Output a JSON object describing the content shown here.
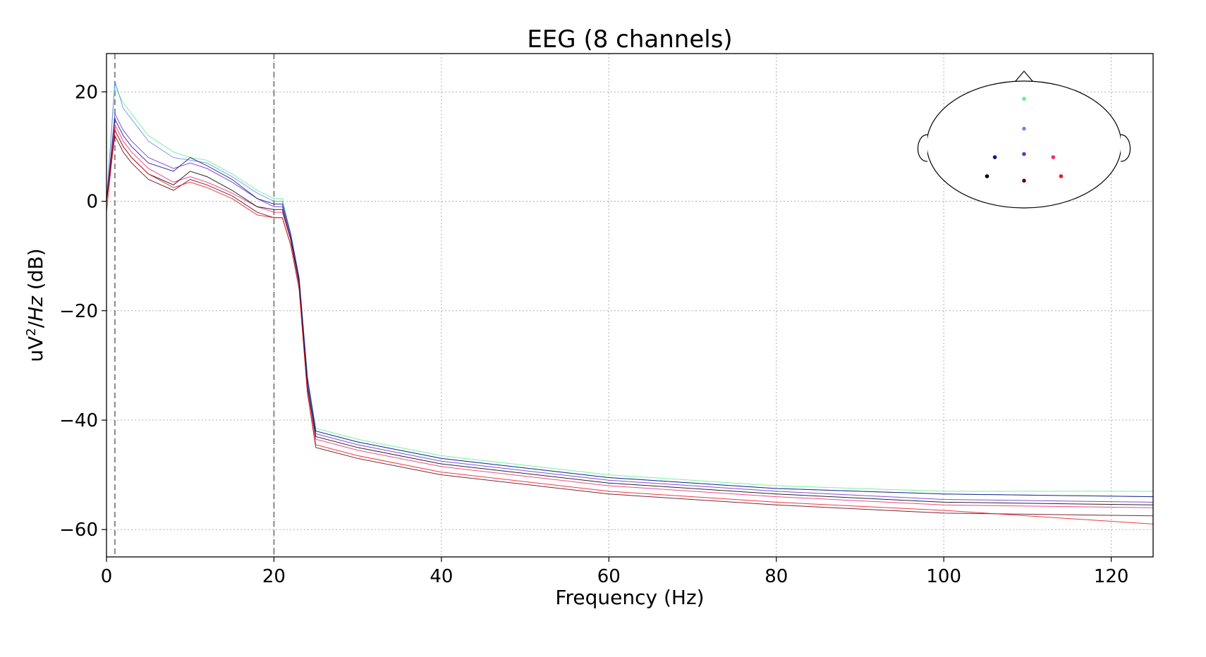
{
  "chart_data": {
    "type": "line",
    "title": "EEG (8 channels)",
    "xlabel": "Frequency (Hz)",
    "ylabel": {
      "base": "uV",
      "sup": "2",
      "slash": "/",
      "italic": "Hz",
      "unit": " (dB)"
    },
    "xlim": [
      0,
      125
    ],
    "ylim": [
      -65,
      27
    ],
    "xticks": [
      0,
      20,
      40,
      60,
      80,
      100,
      120
    ],
    "yticks": [
      20,
      0,
      -20,
      -40,
      -60
    ],
    "grid": true,
    "vlines": [
      1,
      20
    ],
    "sensor_inset": {
      "position": "top-right",
      "sensors": [
        {
          "x": 0.0,
          "y": 0.72,
          "color": "#5ef090"
        },
        {
          "x": 0.0,
          "y": 0.25,
          "color": "#7088f0"
        },
        {
          "x": 0.0,
          "y": -0.15,
          "color": "#6a2fd0"
        },
        {
          "x": -0.3,
          "y": -0.2,
          "color": "#0a1a80"
        },
        {
          "x": 0.3,
          "y": -0.2,
          "color": "#f0287a"
        },
        {
          "x": -0.38,
          "y": -0.5,
          "color": "#000000"
        },
        {
          "x": 0.0,
          "y": -0.57,
          "color": "#600018"
        },
        {
          "x": 0.38,
          "y": -0.5,
          "color": "#f01818"
        }
      ]
    },
    "series": [
      {
        "color": "#5ef090",
        "points": [
          [
            0,
            0
          ],
          [
            1,
            21
          ],
          [
            2,
            18
          ],
          [
            3,
            16
          ],
          [
            5,
            12
          ],
          [
            8,
            9
          ],
          [
            10,
            8
          ],
          [
            12,
            7.5
          ],
          [
            15,
            5
          ],
          [
            18,
            2
          ],
          [
            20,
            0.5
          ],
          [
            21,
            0.5
          ],
          [
            22,
            -6
          ],
          [
            23,
            -14
          ],
          [
            24,
            -32
          ],
          [
            25,
            -41.5
          ],
          [
            30,
            -43.5
          ],
          [
            40,
            -46.5
          ],
          [
            60,
            -50
          ],
          [
            80,
            -52
          ],
          [
            100,
            -53
          ],
          [
            125,
            -53
          ]
        ]
      },
      {
        "color": "#7088f0",
        "points": [
          [
            0,
            0
          ],
          [
            1,
            22
          ],
          [
            2,
            17
          ],
          [
            3,
            15
          ],
          [
            5,
            11
          ],
          [
            8,
            8
          ],
          [
            10,
            7.5
          ],
          [
            12,
            7
          ],
          [
            15,
            4.5
          ],
          [
            18,
            1.5
          ],
          [
            20,
            0
          ],
          [
            21,
            0
          ],
          [
            22,
            -6
          ],
          [
            23,
            -14
          ],
          [
            24,
            -32
          ],
          [
            25,
            -42
          ],
          [
            30,
            -44
          ],
          [
            40,
            -47
          ],
          [
            60,
            -50.5
          ],
          [
            80,
            -52.5
          ],
          [
            100,
            -53.5
          ],
          [
            125,
            -54
          ]
        ]
      },
      {
        "color": "#6a2fd0",
        "points": [
          [
            0,
            0
          ],
          [
            1,
            16
          ],
          [
            2,
            13
          ],
          [
            3,
            11
          ],
          [
            5,
            8
          ],
          [
            8,
            6
          ],
          [
            10,
            7
          ],
          [
            12,
            6
          ],
          [
            15,
            3.5
          ],
          [
            18,
            0.5
          ],
          [
            20,
            -1
          ],
          [
            21,
            -1
          ],
          [
            22,
            -6.5
          ],
          [
            23,
            -14.5
          ],
          [
            24,
            -33
          ],
          [
            25,
            -42.5
          ],
          [
            30,
            -44.5
          ],
          [
            40,
            -47.5
          ],
          [
            60,
            -51
          ],
          [
            80,
            -53
          ],
          [
            100,
            -54.5
          ],
          [
            125,
            -55
          ]
        ]
      },
      {
        "color": "#0a1a80",
        "points": [
          [
            0,
            0
          ],
          [
            1,
            15
          ],
          [
            2,
            12
          ],
          [
            3,
            10
          ],
          [
            5,
            7
          ],
          [
            8,
            5.5
          ],
          [
            10,
            8
          ],
          [
            12,
            6.5
          ],
          [
            15,
            4
          ],
          [
            18,
            0.5
          ],
          [
            20,
            -0.5
          ],
          [
            21,
            -0.5
          ],
          [
            22,
            -6
          ],
          [
            23,
            -14
          ],
          [
            24,
            -32.5
          ],
          [
            25,
            -42
          ],
          [
            30,
            -44
          ],
          [
            40,
            -47
          ],
          [
            60,
            -50.5
          ],
          [
            80,
            -52.5
          ],
          [
            100,
            -53.5
          ],
          [
            125,
            -54
          ]
        ]
      },
      {
        "color": "#f0287a",
        "points": [
          [
            0,
            0
          ],
          [
            1,
            14
          ],
          [
            2,
            11
          ],
          [
            3,
            9
          ],
          [
            5,
            6
          ],
          [
            8,
            3.5
          ],
          [
            10,
            4.5
          ],
          [
            12,
            3.5
          ],
          [
            15,
            1.5
          ],
          [
            18,
            -1
          ],
          [
            20,
            -2
          ],
          [
            21,
            -2
          ],
          [
            22,
            -7
          ],
          [
            23,
            -15
          ],
          [
            24,
            -34
          ],
          [
            25,
            -43.5
          ],
          [
            30,
            -45.5
          ],
          [
            40,
            -48.5
          ],
          [
            60,
            -52
          ],
          [
            80,
            -54
          ],
          [
            100,
            -55.5
          ],
          [
            125,
            -56
          ]
        ]
      },
      {
        "color": "#000000",
        "points": [
          [
            0,
            0
          ],
          [
            1,
            13
          ],
          [
            2,
            10
          ],
          [
            3,
            8
          ],
          [
            5,
            5
          ],
          [
            8,
            3
          ],
          [
            10,
            5.5
          ],
          [
            12,
            4.5
          ],
          [
            15,
            2
          ],
          [
            18,
            -1
          ],
          [
            20,
            -1.5
          ],
          [
            21,
            -1.5
          ],
          [
            22,
            -7
          ],
          [
            23,
            -15
          ],
          [
            24,
            -34
          ],
          [
            25,
            -43
          ],
          [
            30,
            -45
          ],
          [
            40,
            -48
          ],
          [
            60,
            -51.5
          ],
          [
            80,
            -53.5
          ],
          [
            100,
            -55
          ],
          [
            125,
            -55.5
          ]
        ]
      },
      {
        "color": "#600018",
        "points": [
          [
            0,
            0
          ],
          [
            1,
            12
          ],
          [
            2,
            9
          ],
          [
            3,
            7
          ],
          [
            5,
            4
          ],
          [
            8,
            2
          ],
          [
            10,
            4
          ],
          [
            12,
            3
          ],
          [
            15,
            1
          ],
          [
            18,
            -2
          ],
          [
            20,
            -3
          ],
          [
            21,
            -3
          ],
          [
            22,
            -8
          ],
          [
            23,
            -16
          ],
          [
            24,
            -35
          ],
          [
            25,
            -45
          ],
          [
            30,
            -47
          ],
          [
            40,
            -50
          ],
          [
            60,
            -53.5
          ],
          [
            80,
            -55.5
          ],
          [
            100,
            -57
          ],
          [
            125,
            -57.5
          ]
        ]
      },
      {
        "color": "#f01818",
        "points": [
          [
            0,
            -2
          ],
          [
            1,
            13
          ],
          [
            2,
            10
          ],
          [
            3,
            8
          ],
          [
            5,
            5
          ],
          [
            8,
            2.5
          ],
          [
            10,
            3.5
          ],
          [
            12,
            2.5
          ],
          [
            15,
            0.5
          ],
          [
            18,
            -2.5
          ],
          [
            20,
            -3
          ],
          [
            21,
            -3
          ],
          [
            22,
            -8
          ],
          [
            23,
            -16
          ],
          [
            24,
            -35
          ],
          [
            25,
            -44.5
          ],
          [
            30,
            -46.5
          ],
          [
            40,
            -49.5
          ],
          [
            60,
            -53
          ],
          [
            80,
            -55
          ],
          [
            100,
            -56.5
          ],
          [
            125,
            -59
          ]
        ]
      }
    ]
  }
}
